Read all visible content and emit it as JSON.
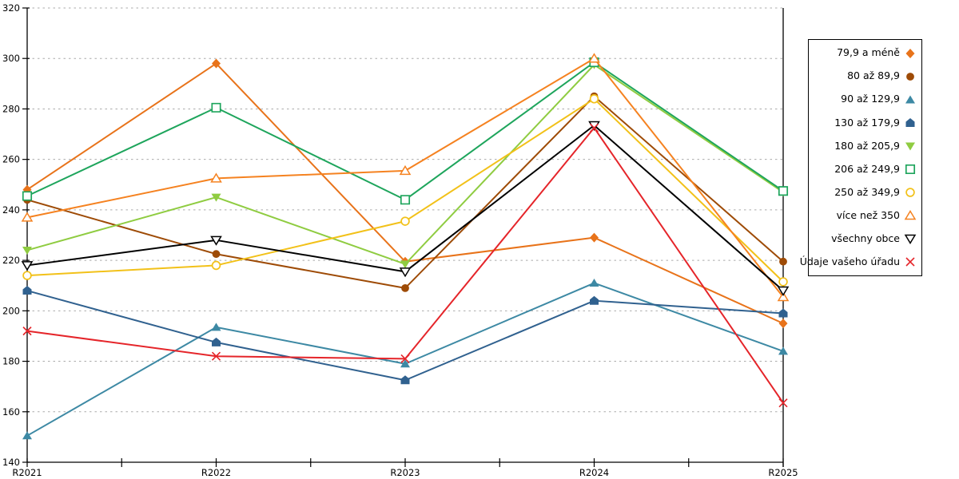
{
  "figure": {
    "background": "#FFFFFF",
    "axis_color": "#000000",
    "grid_color": "#ABABAB",
    "label_color": "#000000"
  },
  "chart_data": {
    "type": "line",
    "title": "",
    "xlabel": "",
    "ylabel": "",
    "categories": [
      "R2021",
      "R2022",
      "R2023",
      "R2024",
      "R2025"
    ],
    "ylim": [
      140,
      320
    ],
    "ytick_step": 20,
    "y_tick_labels": [
      "140",
      "160",
      "180",
      "200",
      "220",
      "240",
      "260",
      "280",
      "300",
      "320"
    ],
    "grid": "horizontal-dashed",
    "legend_position": "right",
    "series": [
      {
        "name": "79,9 a méně",
        "color": "#E8731A",
        "marker": "diamond",
        "values": [
          248,
          298,
          219.5,
          229,
          195
        ]
      },
      {
        "name": "80 až 89,9",
        "color": "#9E4B06",
        "marker": "circle",
        "values": [
          244,
          222.5,
          209,
          285,
          219.5
        ]
      },
      {
        "name": "90 až 129,9",
        "color": "#3D89A4",
        "marker": "triangle-up",
        "values": [
          150.5,
          193.5,
          179,
          211,
          184
        ]
      },
      {
        "name": "130 až 179,9",
        "color": "#30618F",
        "marker": "pentagon",
        "values": [
          208,
          187.5,
          172.5,
          204,
          199
        ]
      },
      {
        "name": "180 až 205,9",
        "color": "#8FCC41",
        "marker": "triangle-down",
        "values": [
          224,
          245,
          218.5,
          297.5,
          247
        ]
      },
      {
        "name": "206 až 249,9",
        "color": "#1EA55C",
        "marker": "square-open",
        "values": [
          245.5,
          280.5,
          244,
          298.5,
          247.5
        ]
      },
      {
        "name": "250 až 349,9",
        "color": "#F2C119",
        "marker": "circle-open",
        "values": [
          214,
          218,
          235.5,
          284,
          211.5
        ]
      },
      {
        "name": "více než 350",
        "color": "#F58220",
        "marker": "triangle-up-open",
        "values": [
          237,
          252.5,
          255.5,
          300,
          205.5
        ]
      },
      {
        "name": "všechny obce",
        "color": "#000000",
        "marker": "triangle-down-open",
        "values": [
          218,
          228,
          215.5,
          273.5,
          208
        ]
      },
      {
        "name": "Údaje vašeho úřadu",
        "color": "#E5252A",
        "marker": "x",
        "values": [
          192,
          182,
          181,
          272.5,
          163.5
        ]
      }
    ]
  }
}
